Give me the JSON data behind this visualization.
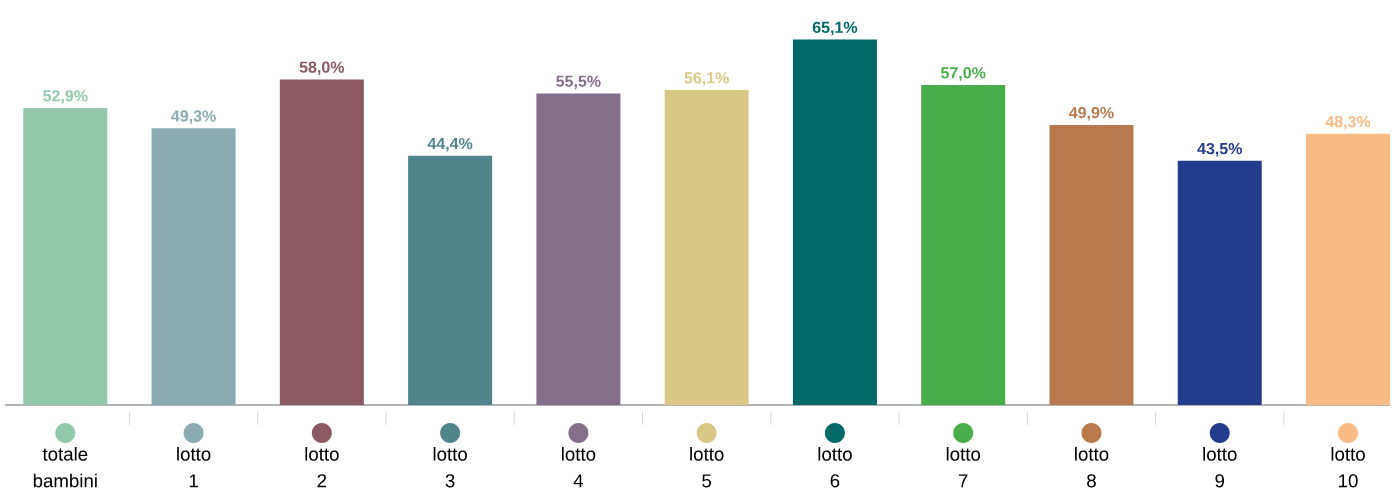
{
  "chart_data": {
    "type": "bar",
    "categories": [
      "totale bambini",
      "lotto 1",
      "lotto 2",
      "lotto 3",
      "lotto 4",
      "lotto 5",
      "lotto 6",
      "lotto 7",
      "lotto 8",
      "lotto 9",
      "lotto 10"
    ],
    "values": [
      52.9,
      49.3,
      58.0,
      44.4,
      55.5,
      56.1,
      65.1,
      57.0,
      49.9,
      43.5,
      48.3
    ],
    "value_labels": [
      "52,9%",
      "49,3%",
      "58,0%",
      "44,4%",
      "55,5%",
      "56,1%",
      "65,1%",
      "57,0%",
      "49,9%",
      "43,5%",
      "48,3%"
    ],
    "colors": [
      "#93c8ad",
      "#8aabb0",
      "#8b5a62",
      "#50848b",
      "#836f8a",
      "#d9c886",
      "#006968",
      "#49ae49",
      "#b87a4d",
      "#243c8c",
      "#f8bb84"
    ]
  }
}
